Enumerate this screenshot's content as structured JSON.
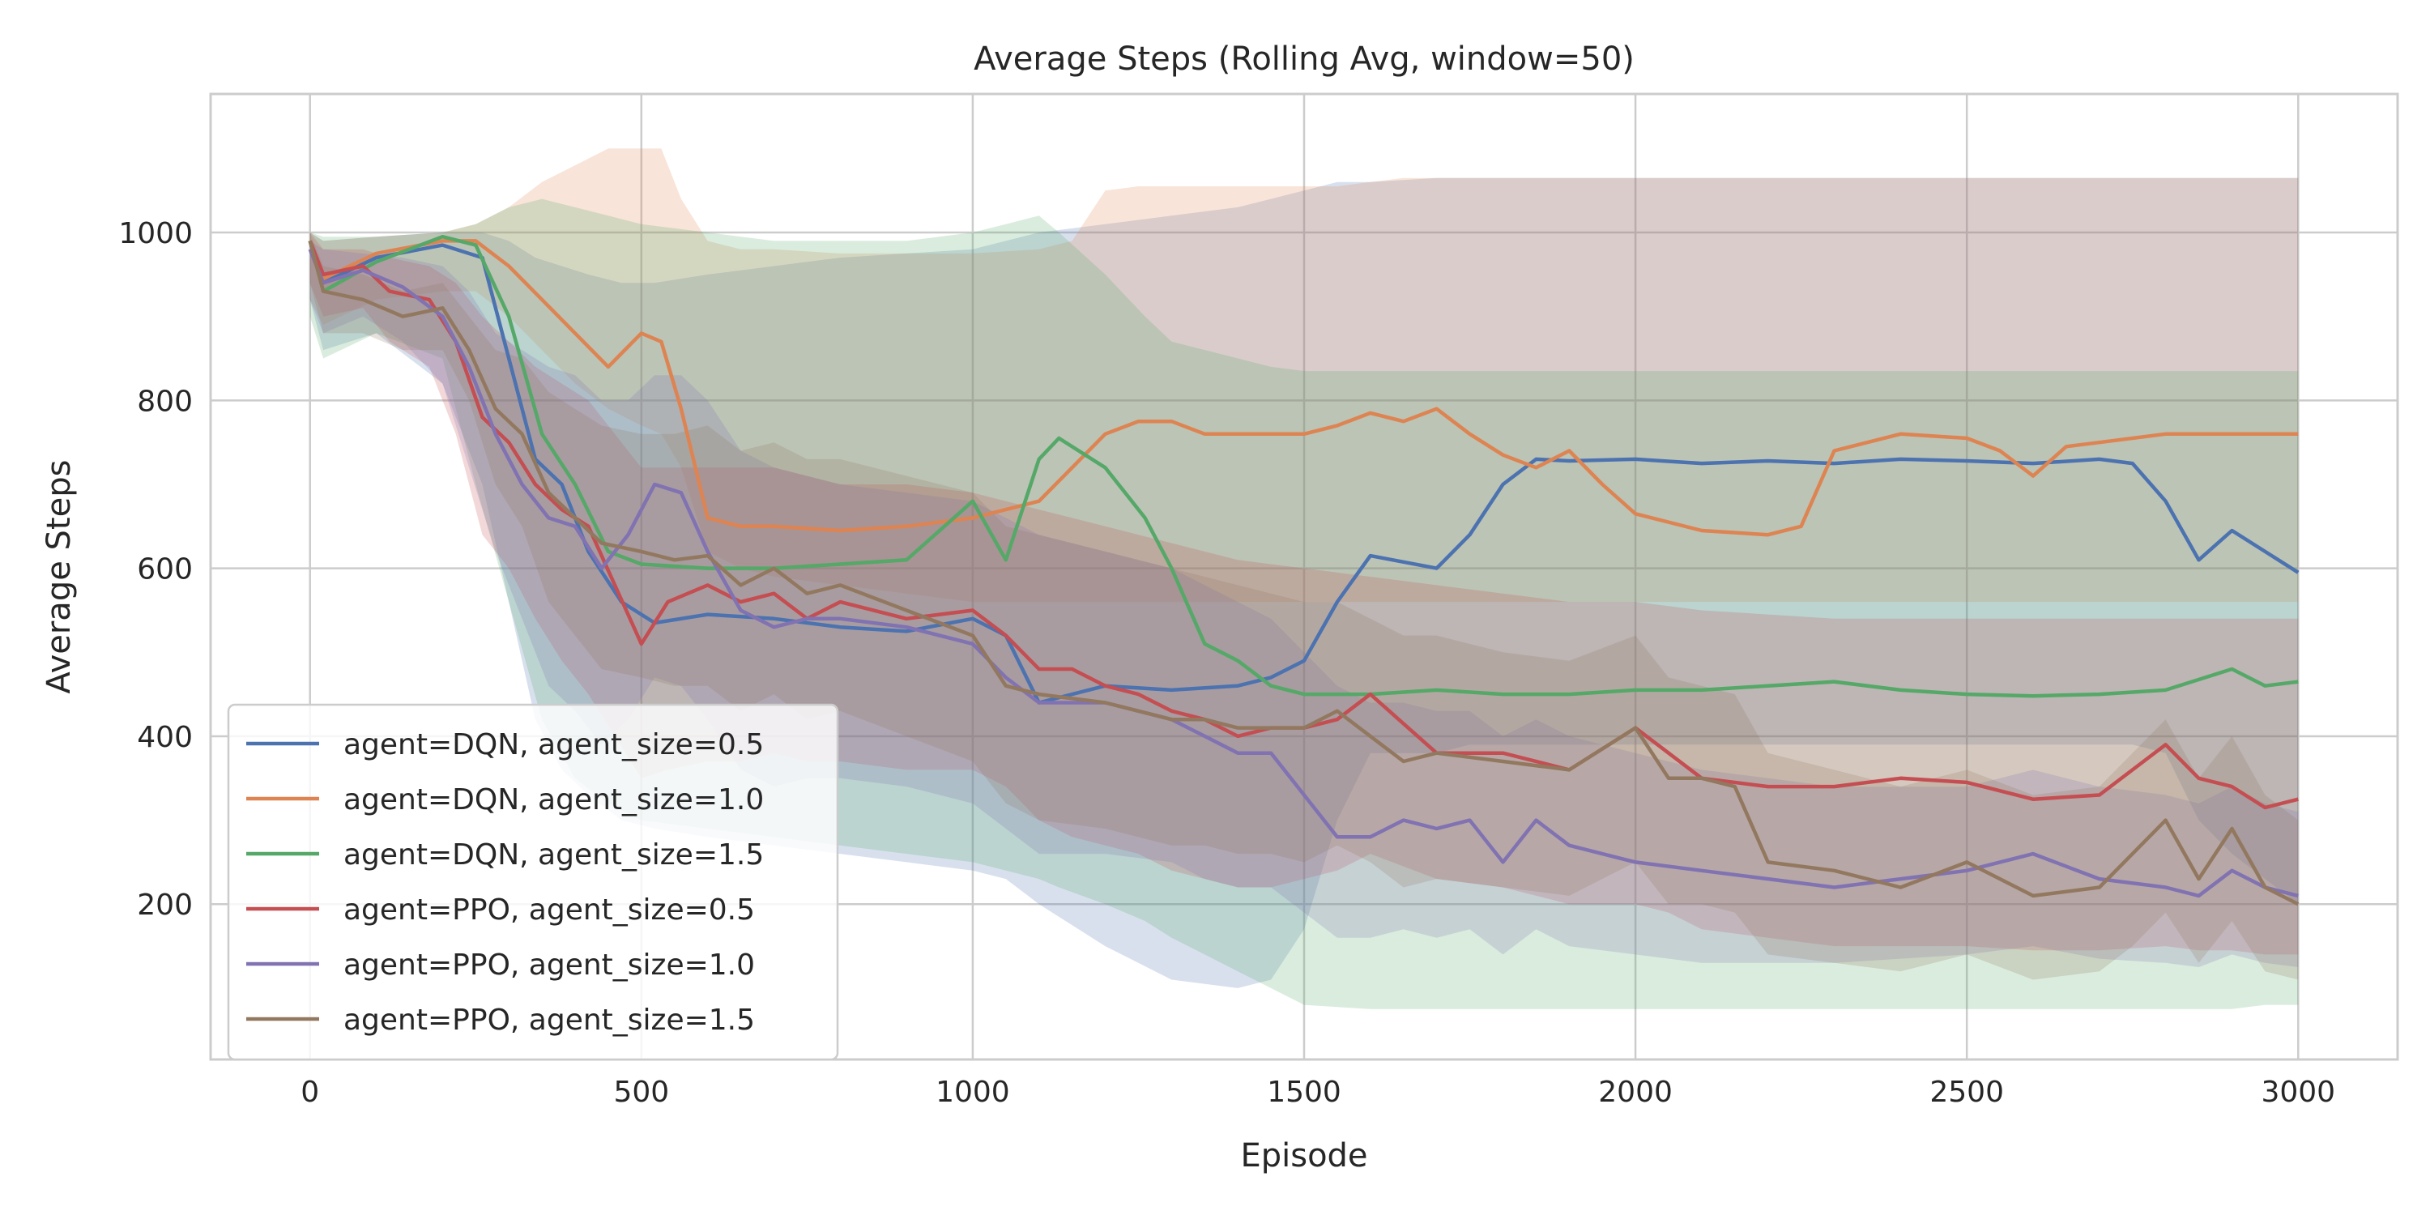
{
  "chart_data": {
    "type": "line",
    "title": "Average Steps (Rolling Avg, window=50)",
    "xlabel": "Episode",
    "ylabel": "Average Steps",
    "xlim": [
      -150,
      3150
    ],
    "ylim": [
      15,
      1165
    ],
    "xticks": [
      0,
      500,
      1000,
      1500,
      2000,
      2500,
      3000
    ],
    "yticks": [
      200,
      400,
      600,
      800,
      1000
    ],
    "grid": true,
    "legend_position": "lower-left",
    "series": [
      {
        "name": "agent=DQN, agent_size=0.5",
        "color": "#4c72b0",
        "x": [
          0,
          20,
          100,
          200,
          260,
          300,
          340,
          380,
          420,
          470,
          520,
          600,
          700,
          800,
          900,
          1000,
          1050,
          1100,
          1200,
          1300,
          1400,
          1450,
          1500,
          1550,
          1600,
          1700,
          1750,
          1800,
          1850,
          1900,
          2000,
          2100,
          2200,
          2300,
          2400,
          2500,
          2600,
          2700,
          2750,
          2800,
          2850,
          2900,
          2950,
          3000
        ],
        "y": [
          990,
          940,
          970,
          985,
          970,
          850,
          730,
          700,
          620,
          560,
          535,
          545,
          540,
          530,
          525,
          540,
          520,
          440,
          460,
          455,
          460,
          470,
          490,
          560,
          615,
          600,
          640,
          700,
          730,
          728,
          730,
          725,
          728,
          725,
          730,
          728,
          725,
          730,
          725,
          680,
          610,
          645,
          620,
          595
        ],
        "band_upper": [
          1000,
          990,
          995,
          1000,
          1000,
          990,
          970,
          960,
          950,
          940,
          940,
          950,
          960,
          970,
          975,
          980,
          990,
          1000,
          1010,
          1020,
          1030,
          1040,
          1050,
          1060,
          1060,
          1065,
          1065,
          1065,
          1065,
          1065,
          1065,
          1065,
          1065,
          1065,
          1065,
          1065,
          1065,
          1065,
          1065,
          1065,
          1065,
          1065,
          1065,
          1065
        ],
        "band_lower": [
          920,
          860,
          880,
          820,
          700,
          560,
          420,
          360,
          330,
          300,
          290,
          280,
          270,
          260,
          250,
          240,
          230,
          200,
          150,
          110,
          100,
          110,
          170,
          300,
          380,
          380,
          390,
          390,
          390,
          390,
          390,
          390,
          390,
          390,
          390,
          390,
          390,
          390,
          390,
          380,
          300,
          260,
          230,
          200
        ]
      },
      {
        "name": "agent=DQN, agent_size=1.0",
        "color": "#dd8452",
        "x": [
          0,
          20,
          100,
          200,
          250,
          300,
          350,
          400,
          450,
          500,
          530,
          560,
          600,
          650,
          700,
          800,
          900,
          1000,
          1100,
          1150,
          1200,
          1250,
          1300,
          1350,
          1400,
          1500,
          1550,
          1600,
          1650,
          1700,
          1750,
          1800,
          1850,
          1900,
          1950,
          2000,
          2100,
          2200,
          2250,
          2300,
          2400,
          2500,
          2550,
          2600,
          2650,
          2700,
          2800,
          2900,
          3000
        ],
        "y": [
          990,
          945,
          975,
          990,
          990,
          960,
          920,
          880,
          840,
          880,
          870,
          790,
          660,
          650,
          650,
          645,
          650,
          660,
          680,
          720,
          760,
          775,
          775,
          760,
          760,
          760,
          770,
          785,
          775,
          790,
          760,
          735,
          720,
          740,
          700,
          665,
          645,
          640,
          650,
          740,
          760,
          755,
          740,
          710,
          745,
          750,
          760,
          760,
          760
        ],
        "band_upper": [
          1000,
          990,
          995,
          1000,
          1010,
          1030,
          1060,
          1080,
          1100,
          1100,
          1100,
          1040,
          990,
          980,
          980,
          975,
          975,
          975,
          980,
          990,
          1050,
          1055,
          1055,
          1055,
          1055,
          1055,
          1055,
          1060,
          1065,
          1065,
          1065,
          1065,
          1065,
          1065,
          1065,
          1065,
          1065,
          1065,
          1065,
          1065,
          1065,
          1065,
          1065,
          1065,
          1065,
          1065,
          1065,
          1065,
          1065
        ],
        "band_lower": [
          920,
          890,
          920,
          930,
          930,
          900,
          860,
          820,
          790,
          770,
          760,
          720,
          620,
          600,
          590,
          580,
          570,
          560,
          560,
          560,
          560,
          560,
          560,
          560,
          560,
          560,
          560,
          560,
          560,
          560,
          560,
          560,
          560,
          560,
          560,
          560,
          560,
          560,
          560,
          560,
          560,
          560,
          560,
          560,
          560,
          560,
          560,
          560,
          560
        ]
      },
      {
        "name": "agent=DQN, agent_size=1.5",
        "color": "#55a868",
        "x": [
          0,
          20,
          100,
          200,
          250,
          300,
          350,
          400,
          450,
          500,
          600,
          700,
          800,
          900,
          1000,
          1050,
          1100,
          1130,
          1200,
          1260,
          1300,
          1350,
          1400,
          1450,
          1500,
          1600,
          1700,
          1800,
          1900,
          2000,
          2100,
          2200,
          2300,
          2400,
          2500,
          2600,
          2700,
          2800,
          2900,
          2950,
          3000
        ],
        "y": [
          990,
          930,
          965,
          995,
          985,
          900,
          760,
          700,
          620,
          605,
          600,
          600,
          605,
          610,
          680,
          610,
          730,
          755,
          720,
          660,
          600,
          510,
          490,
          460,
          450,
          450,
          455,
          450,
          450,
          455,
          455,
          460,
          465,
          455,
          450,
          448,
          450,
          455,
          480,
          460,
          465
        ],
        "band_upper": [
          1000,
          995,
          995,
          1000,
          1010,
          1030,
          1040,
          1030,
          1020,
          1010,
          1000,
          990,
          990,
          990,
          1000,
          1010,
          1020,
          1000,
          950,
          900,
          870,
          860,
          850,
          840,
          835,
          835,
          835,
          835,
          835,
          835,
          835,
          835,
          835,
          835,
          835,
          835,
          835,
          835,
          835,
          835,
          835
        ],
        "band_lower": [
          900,
          850,
          880,
          850,
          700,
          560,
          420,
          350,
          320,
          300,
          290,
          280,
          270,
          260,
          250,
          240,
          230,
          220,
          200,
          180,
          160,
          140,
          120,
          100,
          80,
          75,
          75,
          75,
          75,
          75,
          75,
          75,
          75,
          75,
          75,
          75,
          75,
          75,
          75,
          80,
          80
        ]
      },
      {
        "name": "agent=PPO, agent_size=0.5",
        "color": "#c44e52",
        "x": [
          0,
          20,
          80,
          120,
          180,
          220,
          260,
          300,
          340,
          380,
          420,
          460,
          500,
          540,
          600,
          650,
          700,
          750,
          800,
          900,
          1000,
          1050,
          1100,
          1150,
          1200,
          1250,
          1300,
          1350,
          1400,
          1450,
          1500,
          1550,
          1600,
          1700,
          1800,
          1900,
          2000,
          2050,
          2100,
          2200,
          2300,
          2400,
          2500,
          2600,
          2700,
          2800,
          2850,
          2900,
          2950,
          3000
        ],
        "y": [
          990,
          950,
          960,
          930,
          920,
          870,
          780,
          750,
          700,
          670,
          650,
          580,
          510,
          560,
          580,
          560,
          570,
          540,
          560,
          540,
          550,
          520,
          480,
          480,
          460,
          450,
          430,
          420,
          400,
          410,
          410,
          420,
          450,
          380,
          380,
          360,
          410,
          380,
          350,
          340,
          340,
          350,
          345,
          325,
          330,
          390,
          350,
          340,
          315,
          325
        ],
        "band_upper": [
          1000,
          980,
          980,
          970,
          960,
          940,
          900,
          870,
          840,
          820,
          800,
          760,
          720,
          720,
          720,
          720,
          720,
          710,
          700,
          700,
          690,
          680,
          670,
          660,
          650,
          640,
          630,
          620,
          610,
          605,
          600,
          595,
          590,
          580,
          570,
          560,
          560,
          555,
          550,
          545,
          540,
          540,
          540,
          540,
          540,
          540,
          540,
          540,
          540,
          540
        ],
        "band_lower": [
          940,
          900,
          910,
          870,
          840,
          760,
          640,
          600,
          540,
          490,
          450,
          400,
          350,
          360,
          370,
          370,
          380,
          370,
          370,
          360,
          360,
          340,
          300,
          280,
          270,
          260,
          240,
          230,
          220,
          220,
          230,
          240,
          260,
          230,
          220,
          200,
          200,
          190,
          170,
          160,
          150,
          150,
          150,
          145,
          145,
          150,
          145,
          145,
          140,
          140
        ]
      },
      {
        "name": "agent=PPO, agent_size=1.0",
        "color": "#8172b2",
        "x": [
          0,
          20,
          80,
          140,
          200,
          240,
          280,
          320,
          360,
          400,
          440,
          480,
          520,
          560,
          600,
          650,
          700,
          750,
          800,
          900,
          1000,
          1050,
          1100,
          1200,
          1300,
          1350,
          1400,
          1450,
          1500,
          1550,
          1600,
          1650,
          1700,
          1750,
          1800,
          1850,
          1900,
          2000,
          2100,
          2200,
          2300,
          2400,
          2500,
          2600,
          2700,
          2800,
          2850,
          2900,
          2950,
          3000
        ],
        "y": [
          980,
          940,
          955,
          935,
          900,
          840,
          760,
          700,
          660,
          650,
          600,
          640,
          700,
          690,
          620,
          550,
          530,
          540,
          540,
          530,
          510,
          470,
          440,
          440,
          420,
          400,
          380,
          380,
          330,
          280,
          280,
          300,
          290,
          300,
          250,
          300,
          270,
          250,
          240,
          230,
          220,
          230,
          240,
          260,
          230,
          220,
          210,
          240,
          220,
          210
        ],
        "band_upper": [
          990,
          980,
          975,
          970,
          960,
          930,
          880,
          860,
          840,
          830,
          800,
          800,
          830,
          830,
          800,
          740,
          720,
          710,
          700,
          690,
          680,
          660,
          640,
          620,
          600,
          580,
          560,
          540,
          500,
          460,
          440,
          440,
          430,
          430,
          400,
          420,
          400,
          380,
          360,
          350,
          340,
          340,
          340,
          360,
          340,
          330,
          320,
          340,
          320,
          310
        ],
        "band_lower": [
          920,
          880,
          900,
          870,
          820,
          720,
          620,
          540,
          460,
          430,
          390,
          420,
          470,
          460,
          420,
          360,
          340,
          350,
          350,
          340,
          320,
          290,
          260,
          260,
          250,
          230,
          220,
          220,
          190,
          160,
          160,
          170,
          160,
          170,
          140,
          170,
          150,
          140,
          130,
          130,
          130,
          135,
          140,
          150,
          135,
          130,
          125,
          140,
          130,
          125
        ]
      },
      {
        "name": "agent=PPO, agent_size=1.5",
        "color": "#937860",
        "x": [
          0,
          20,
          80,
          140,
          200,
          240,
          280,
          320,
          360,
          400,
          440,
          500,
          550,
          600,
          650,
          700,
          750,
          800,
          900,
          1000,
          1050,
          1100,
          1200,
          1300,
          1350,
          1400,
          1450,
          1500,
          1550,
          1600,
          1650,
          1700,
          1800,
          1900,
          2000,
          2050,
          2100,
          2150,
          2200,
          2300,
          2400,
          2500,
          2600,
          2700,
          2750,
          2800,
          2850,
          2900,
          2950,
          3000
        ],
        "y": [
          990,
          930,
          920,
          900,
          910,
          860,
          790,
          760,
          690,
          660,
          630,
          620,
          610,
          615,
          580,
          600,
          570,
          580,
          550,
          520,
          460,
          450,
          440,
          420,
          420,
          410,
          410,
          410,
          430,
          400,
          370,
          380,
          370,
          360,
          410,
          350,
          350,
          340,
          250,
          240,
          220,
          250,
          210,
          220,
          260,
          300,
          230,
          290,
          220,
          200
        ],
        "band_upper": [
          1000,
          960,
          950,
          930,
          940,
          900,
          860,
          850,
          810,
          790,
          770,
          760,
          760,
          770,
          740,
          750,
          730,
          730,
          710,
          690,
          650,
          640,
          620,
          600,
          590,
          580,
          570,
          560,
          560,
          540,
          520,
          520,
          500,
          490,
          520,
          470,
          460,
          450,
          380,
          360,
          340,
          360,
          330,
          340,
          380,
          420,
          350,
          400,
          330,
          300
        ],
        "band_lower": [
          940,
          880,
          880,
          860,
          860,
          800,
          700,
          650,
          560,
          520,
          480,
          470,
          460,
          460,
          430,
          450,
          420,
          430,
          400,
          370,
          320,
          300,
          290,
          270,
          270,
          260,
          260,
          250,
          270,
          250,
          220,
          230,
          220,
          210,
          250,
          200,
          200,
          190,
          140,
          130,
          120,
          140,
          110,
          120,
          150,
          190,
          130,
          180,
          120,
          110
        ]
      }
    ]
  }
}
